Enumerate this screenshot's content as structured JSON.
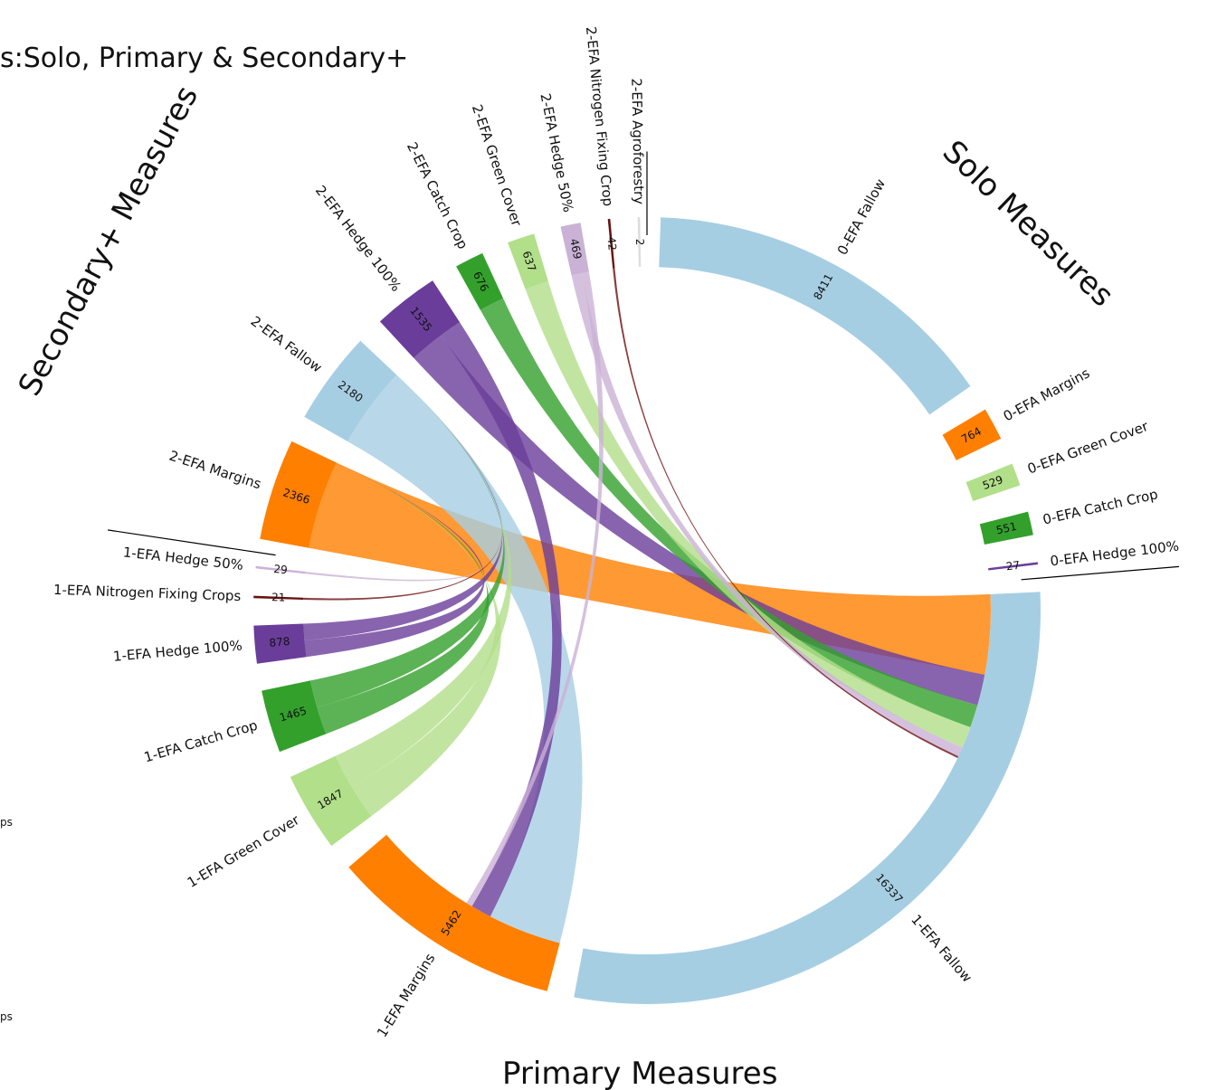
{
  "title": "s:Solo, Primary & Secondary+",
  "side_texts": [
    "ps",
    "ps"
  ],
  "chart_data": {
    "type": "chord",
    "title": "s:Solo, Primary & Secondary+",
    "groups": [
      {
        "name": "Solo Measures"
      },
      {
        "name": "Primary Measures"
      },
      {
        "name": "Secondary+ Measures"
      }
    ],
    "nodes": [
      {
        "label": "0-EFA Fallow",
        "value": 8411,
        "color": "#a6cee3",
        "group": "Solo Measures"
      },
      {
        "label": "0-EFA Margins",
        "value": 764,
        "color": "#ff7f00",
        "group": "Solo Measures"
      },
      {
        "label": "0-EFA Green Cover",
        "value": 529,
        "color": "#b2df8a",
        "group": "Solo Measures"
      },
      {
        "label": "0-EFA Catch Crop",
        "value": 551,
        "color": "#33a02c",
        "group": "Solo Measures"
      },
      {
        "label": "0-EFA Hedge 100%",
        "value": 27,
        "color": "#6a3d9a",
        "group": "Solo Measures"
      },
      {
        "label": "1-EFA Fallow",
        "value": 16337,
        "color": "#a6cee3",
        "group": "Primary Measures"
      },
      {
        "label": "1-EFA Margins",
        "value": 5462,
        "color": "#ff7f00",
        "group": "Primary Measures"
      },
      {
        "label": "1-EFA Green Cover",
        "value": 1847,
        "color": "#b2df8a",
        "group": "Primary Measures"
      },
      {
        "label": "1-EFA Catch Crop",
        "value": 1465,
        "color": "#33a02c",
        "group": "Primary Measures"
      },
      {
        "label": "1-EFA Hedge 100%",
        "value": 878,
        "color": "#6a3d9a",
        "group": "Primary Measures"
      },
      {
        "label": "1-EFA Nitrogen Fixing Crops",
        "value": 21,
        "color": "#6b0f0f",
        "group": "Primary Measures"
      },
      {
        "label": "1-EFA Hedge 50%",
        "value": 29,
        "color": "#cab2d6",
        "group": "Primary Measures"
      },
      {
        "label": "2-EFA Margins",
        "value": 2366,
        "color": "#ff7f00",
        "group": "Secondary+ Measures"
      },
      {
        "label": "2-EFA Fallow",
        "value": 2180,
        "color": "#a6cee3",
        "group": "Secondary+ Measures"
      },
      {
        "label": "2-EFA Hedge 100%",
        "value": 1535,
        "color": "#6a3d9a",
        "group": "Secondary+ Measures"
      },
      {
        "label": "2-EFA Catch Crop",
        "value": 676,
        "color": "#33a02c",
        "group": "Secondary+ Measures"
      },
      {
        "label": "2-EFA Green Cover",
        "value": 637,
        "color": "#b2df8a",
        "group": "Secondary+ Measures"
      },
      {
        "label": "2-EFA Hedge 50%",
        "value": 469,
        "color": "#cab2d6",
        "group": "Secondary+ Measures"
      },
      {
        "label": "2-EFA Nitrogen Fixing Crop",
        "value": 42,
        "color": "#6b0f0f",
        "group": "Secondary+ Measures"
      },
      {
        "label": "2-EFA Agroforestry",
        "value": 2,
        "color": "#dddddd",
        "group": "Secondary+ Measures"
      }
    ]
  }
}
